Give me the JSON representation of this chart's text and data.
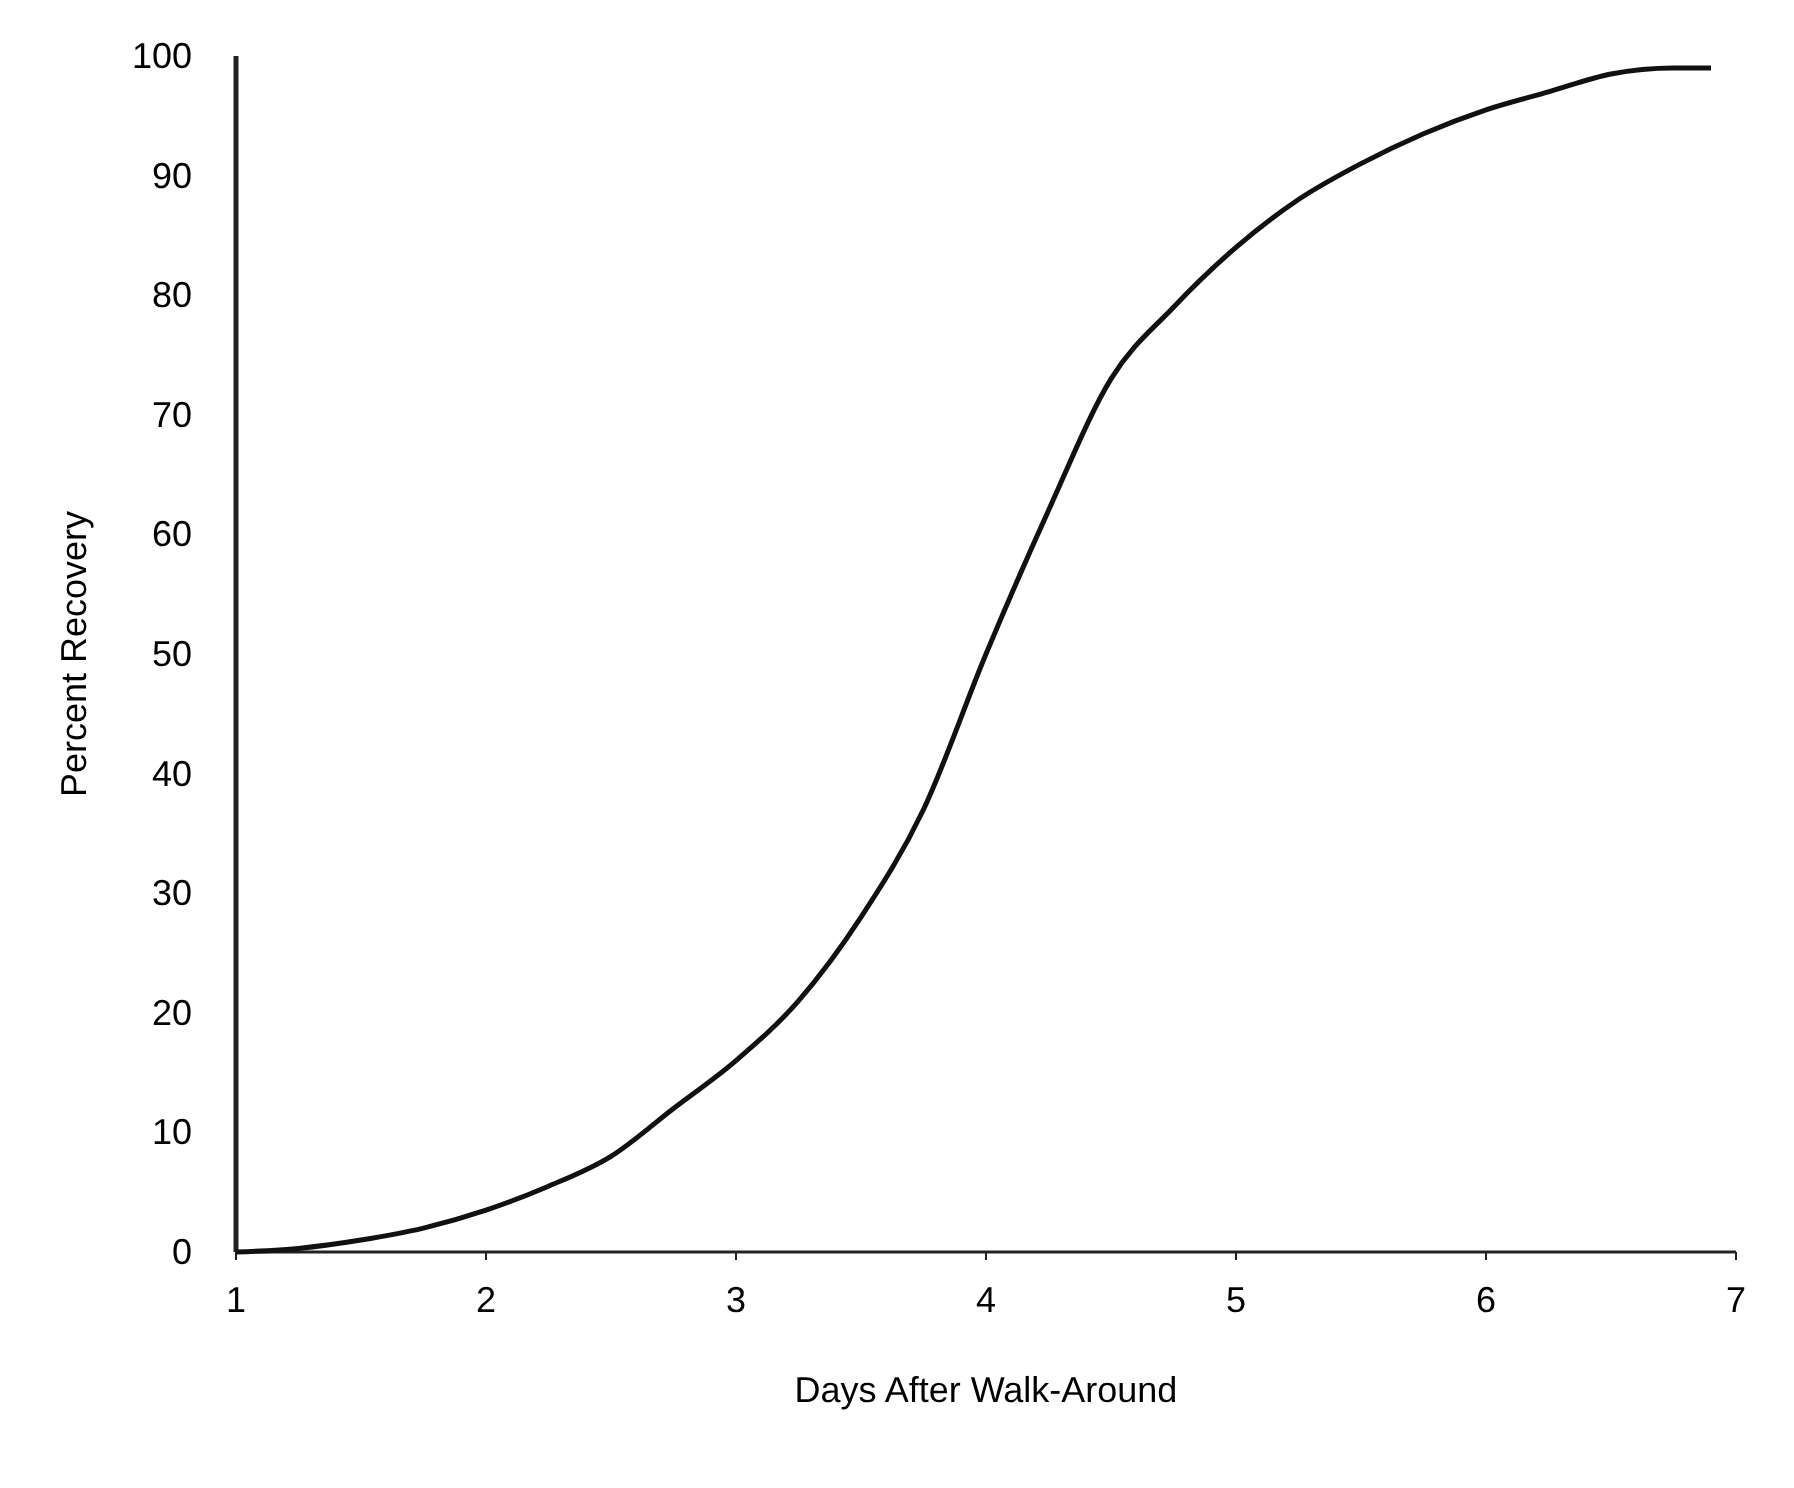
{
  "chart_data": {
    "type": "line",
    "xlabel": "Days  After  Walk-Around",
    "ylabel": "Percent Recovery",
    "xlim": [
      1,
      7
    ],
    "ylim": [
      0,
      100
    ],
    "xticks": [
      1,
      2,
      3,
      4,
      5,
      6,
      7
    ],
    "yticks": [
      0,
      10,
      20,
      30,
      40,
      50,
      60,
      70,
      80,
      90,
      100
    ],
    "grid": false,
    "marker": "none",
    "line_style": "solid",
    "series": [
      {
        "color": "#111111",
        "x": [
          1,
          1.25,
          1.5,
          1.75,
          2,
          2.25,
          2.5,
          2.75,
          3,
          3.25,
          3.5,
          3.75,
          4,
          4.25,
          4.5,
          4.75,
          5,
          5.25,
          5.5,
          5.75,
          6,
          6.25,
          6.5,
          6.75,
          6.9
        ],
        "values": [
          0,
          0.3,
          1,
          2,
          3.5,
          5.5,
          8,
          12,
          16,
          21,
          28,
          37,
          50,
          62,
          73,
          79,
          84,
          88,
          91,
          93.5,
          95.5,
          97,
          98.5,
          99,
          99
        ]
      }
    ]
  }
}
